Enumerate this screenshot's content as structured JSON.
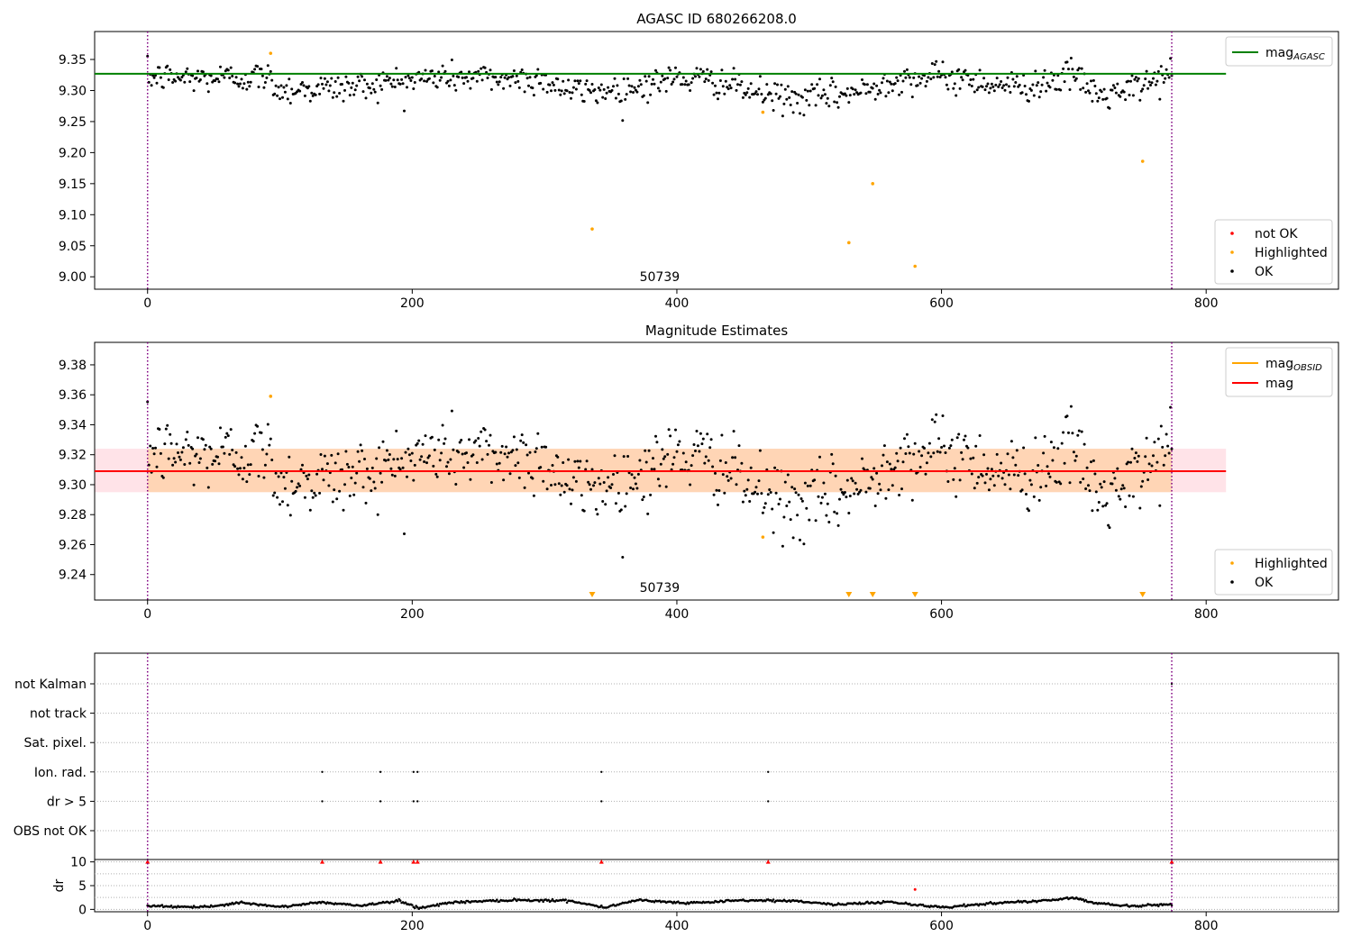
{
  "chart_data": [
    {
      "type": "scatter",
      "title": "AGASC ID 680266208.0",
      "xlabel": "",
      "ylabel": "",
      "xlim": [
        -40,
        900
      ],
      "ylim": [
        8.98,
        9.395
      ],
      "x_ticks": [
        0,
        200,
        400,
        600,
        800
      ],
      "y_ticks": [
        9.0,
        9.05,
        9.1,
        9.15,
        9.2,
        9.25,
        9.3,
        9.35
      ],
      "grid": false,
      "obsid_boundaries": [
        0,
        774
      ],
      "obsid_label": {
        "x": 387,
        "text": "50739"
      },
      "reference_line": {
        "name": "mag_AGASC",
        "label_base": "mag",
        "label_sub": "AGASC",
        "y": 9.327,
        "x_range": [
          -40,
          815
        ],
        "color": "#008000"
      },
      "legend_lines": {
        "position": "top-right",
        "entries": [
          {
            "base": "mag",
            "sub": "AGASC",
            "color": "#008000"
          }
        ]
      },
      "legend_points": {
        "position": "bottom-right",
        "entries": [
          {
            "label": "not OK",
            "color": "#ff0000"
          },
          {
            "label": "Highlighted",
            "color": "#ffa500"
          },
          {
            "label": "OK",
            "color": "#000000"
          }
        ]
      },
      "series": [
        {
          "name": "Highlighted",
          "color": "#ffa500",
          "points": [
            [
              93,
              9.36
            ],
            [
              336,
              9.077
            ],
            [
              465,
              9.265
            ],
            [
              530,
              9.055
            ],
            [
              548,
              9.15
            ],
            [
              580,
              9.017
            ],
            [
              752,
              9.186
            ]
          ]
        }
      ],
      "ok_trend": [
        [
          0,
          9.322
        ],
        [
          40,
          9.32
        ],
        [
          90,
          9.322
        ],
        [
          100,
          9.302
        ],
        [
          150,
          9.305
        ],
        [
          220,
          9.322
        ],
        [
          300,
          9.318
        ],
        [
          320,
          9.298
        ],
        [
          360,
          9.302
        ],
        [
          400,
          9.32
        ],
        [
          430,
          9.315
        ],
        [
          460,
          9.296
        ],
        [
          490,
          9.285
        ],
        [
          520,
          9.293
        ],
        [
          545,
          9.3
        ],
        [
          560,
          9.318
        ],
        [
          600,
          9.322
        ],
        [
          620,
          9.318
        ],
        [
          660,
          9.305
        ],
        [
          700,
          9.325
        ],
        [
          720,
          9.29
        ],
        [
          740,
          9.298
        ],
        [
          770,
          9.325
        ],
        [
          774,
          9.32
        ]
      ],
      "ok_scatter_sd": 0.012
    },
    {
      "type": "scatter",
      "title": "Magnitude Estimates",
      "xlabel": "",
      "ylabel": "",
      "xlim": [
        -40,
        900
      ],
      "ylim": [
        9.223,
        9.395
      ],
      "x_ticks": [
        0,
        200,
        400,
        600,
        800
      ],
      "y_ticks": [
        9.24,
        9.26,
        9.28,
        9.3,
        9.32,
        9.34,
        9.36,
        9.38
      ],
      "grid": false,
      "obsid_boundaries": [
        0,
        774
      ],
      "obsid_label": {
        "x": 387,
        "text": "50739"
      },
      "mag_band": {
        "x_range": [
          -40,
          815
        ],
        "low": 9.295,
        "high": 9.324,
        "color": "#ffc0cb"
      },
      "mag_obsid_band": {
        "x_range": [
          0,
          774
        ],
        "low": 9.295,
        "high": 9.324,
        "color": "#ffa500"
      },
      "reference_lines": [
        {
          "name": "mag_OBSID",
          "label_base": "mag",
          "label_sub": "OBSID",
          "y": 9.309,
          "x_range": [
            0,
            774
          ],
          "color": "#ffa500"
        },
        {
          "name": "mag",
          "label_base": "mag",
          "label_sub": "",
          "y": 9.309,
          "x_range": [
            -40,
            815
          ],
          "color": "#ff0000"
        }
      ],
      "legend_lines": {
        "position": "top-right",
        "entries": [
          {
            "base": "mag",
            "sub": "OBSID",
            "color": "#ffa500"
          },
          {
            "base": "mag",
            "sub": "",
            "color": "#ff0000"
          }
        ]
      },
      "legend_points": {
        "position": "bottom-right",
        "entries": [
          {
            "label": "Highlighted",
            "color": "#ffa500"
          },
          {
            "label": "OK",
            "color": "#000000"
          }
        ]
      },
      "series": [
        {
          "name": "Highlighted",
          "color": "#ffa500",
          "points": [
            [
              93,
              9.359
            ],
            [
              465,
              9.265
            ]
          ]
        }
      ],
      "off_scale_markers": {
        "color": "#ffa500",
        "x": [
          336,
          530,
          548,
          580,
          752
        ]
      }
    },
    {
      "type": "scatter",
      "title": "",
      "xlim": [
        -40,
        900
      ],
      "flag_rows": [
        "not Kalman",
        "not track",
        "Sat. pixel.",
        "Ion. rad.",
        "dr > 5",
        "OBS not OK"
      ],
      "grid": true,
      "obsid_boundaries": [
        0,
        774
      ],
      "flags": {
        "Ion. rad.": [
          132,
          176,
          201,
          204,
          343,
          469
        ],
        "dr > 5": [
          132,
          176,
          201,
          204,
          343,
          469
        ],
        "not Kalman": [
          774
        ]
      }
    },
    {
      "type": "scatter",
      "title": "",
      "xlabel": "",
      "ylabel": "dr",
      "xlim": [
        -40,
        900
      ],
      "ylim": [
        -0.5,
        10.5
      ],
      "x_ticks": [
        0,
        200,
        400,
        600,
        800
      ],
      "y_ticks": [
        0,
        5,
        10
      ],
      "grid": true,
      "obsid_boundaries": [
        0,
        774
      ],
      "capped_points": {
        "color": "#ff0000",
        "y": 10,
        "x": [
          0,
          132,
          176,
          201,
          204,
          343,
          469,
          774
        ]
      },
      "series": [
        {
          "name": "not OK",
          "color": "#ff0000",
          "points": [
            [
              580,
              4.2
            ]
          ]
        }
      ],
      "dr_trend": [
        [
          0,
          0.8
        ],
        [
          40,
          0.4
        ],
        [
          70,
          1.4
        ],
        [
          100,
          0.5
        ],
        [
          130,
          1.5
        ],
        [
          160,
          0.8
        ],
        [
          190,
          1.8
        ],
        [
          205,
          0.3
        ],
        [
          230,
          1.5
        ],
        [
          280,
          2.0
        ],
        [
          320,
          1.8
        ],
        [
          345,
          0.4
        ],
        [
          370,
          2.0
        ],
        [
          410,
          1.3
        ],
        [
          450,
          1.9
        ],
        [
          490,
          1.8
        ],
        [
          520,
          1.0
        ],
        [
          560,
          1.6
        ],
        [
          600,
          0.4
        ],
        [
          640,
          1.3
        ],
        [
          680,
          1.9
        ],
        [
          700,
          2.5
        ],
        [
          715,
          1.4
        ],
        [
          740,
          0.7
        ],
        [
          774,
          1.0
        ]
      ]
    }
  ]
}
